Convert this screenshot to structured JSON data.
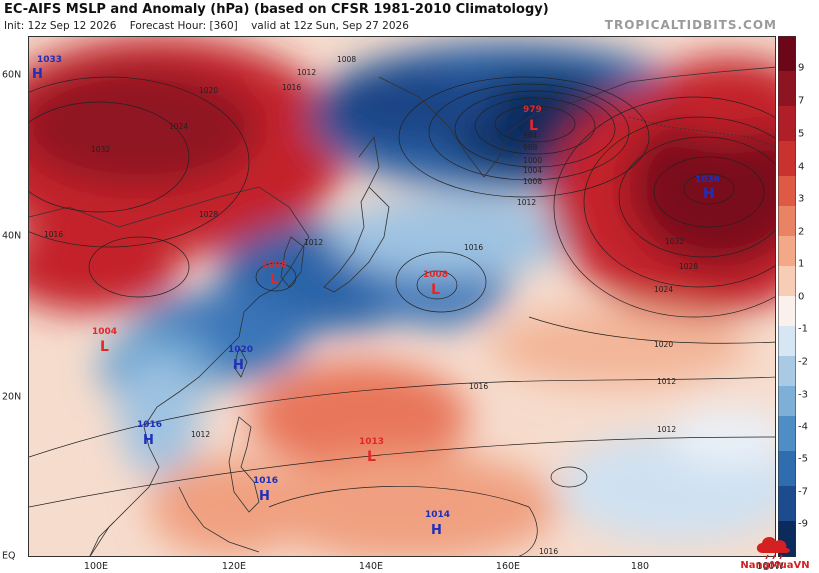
{
  "header": {
    "title": "EC-AIFS MSLP and Anomaly (hPa) (based on CFSR 1981-2010 Climatology)",
    "init": "Init: 12z Sep 12 2026",
    "forecast_hour": "Forecast Hour: [360]",
    "valid": "valid at 12z Sun, Sep 27 2026",
    "watermark": "TROPICALTIDBITS.COM"
  },
  "axes": {
    "lon_labels": [
      "100E",
      "120E",
      "140E",
      "160E",
      "180",
      "160W"
    ],
    "lat_labels": [
      "60N",
      "40N",
      "20N",
      "EQ"
    ]
  },
  "colorbar": {
    "labels": [
      "9",
      "7",
      "5",
      "4",
      "3",
      "2",
      "1",
      "0",
      "-1",
      "-2",
      "-3",
      "-4",
      "-5",
      "-7",
      "-9"
    ],
    "colors": {
      "pos_max": "#7a0a1e",
      "pos_high": "#c4242c",
      "pos_mid": "#e8765a",
      "pos_low": "#f7c9ae",
      "neutral": "#fbf1ec",
      "neg_low": "#c5dcee",
      "neg_mid": "#6aa3d0",
      "neg_high": "#2a64a8",
      "neg_max": "#0c2a5c"
    }
  },
  "pressure_centers": [
    {
      "type": "H",
      "value": "1033"
    },
    {
      "type": "L",
      "value": "979"
    },
    {
      "type": "H",
      "value": "1036"
    },
    {
      "type": "L",
      "value": "1008"
    },
    {
      "type": "L",
      "value": "1008"
    },
    {
      "type": "L",
      "value": "1004"
    },
    {
      "type": "H",
      "value": "1020"
    },
    {
      "type": "H",
      "value": "1016"
    },
    {
      "type": "L",
      "value": "1013"
    },
    {
      "type": "H",
      "value": "1016"
    },
    {
      "type": "H",
      "value": "1014"
    }
  ],
  "isobar_labels": [
    "1008",
    "1012",
    "1016",
    "1016",
    "1020",
    "1024",
    "1028",
    "1032",
    "1012",
    "1016",
    "1016",
    "1012",
    "1012",
    "1012",
    "1016",
    "1020",
    "1024",
    "1028",
    "1032",
    "984",
    "988",
    "1000",
    "1004",
    "1008",
    "1012"
  ],
  "logo": {
    "text": "NangMuaVN"
  }
}
